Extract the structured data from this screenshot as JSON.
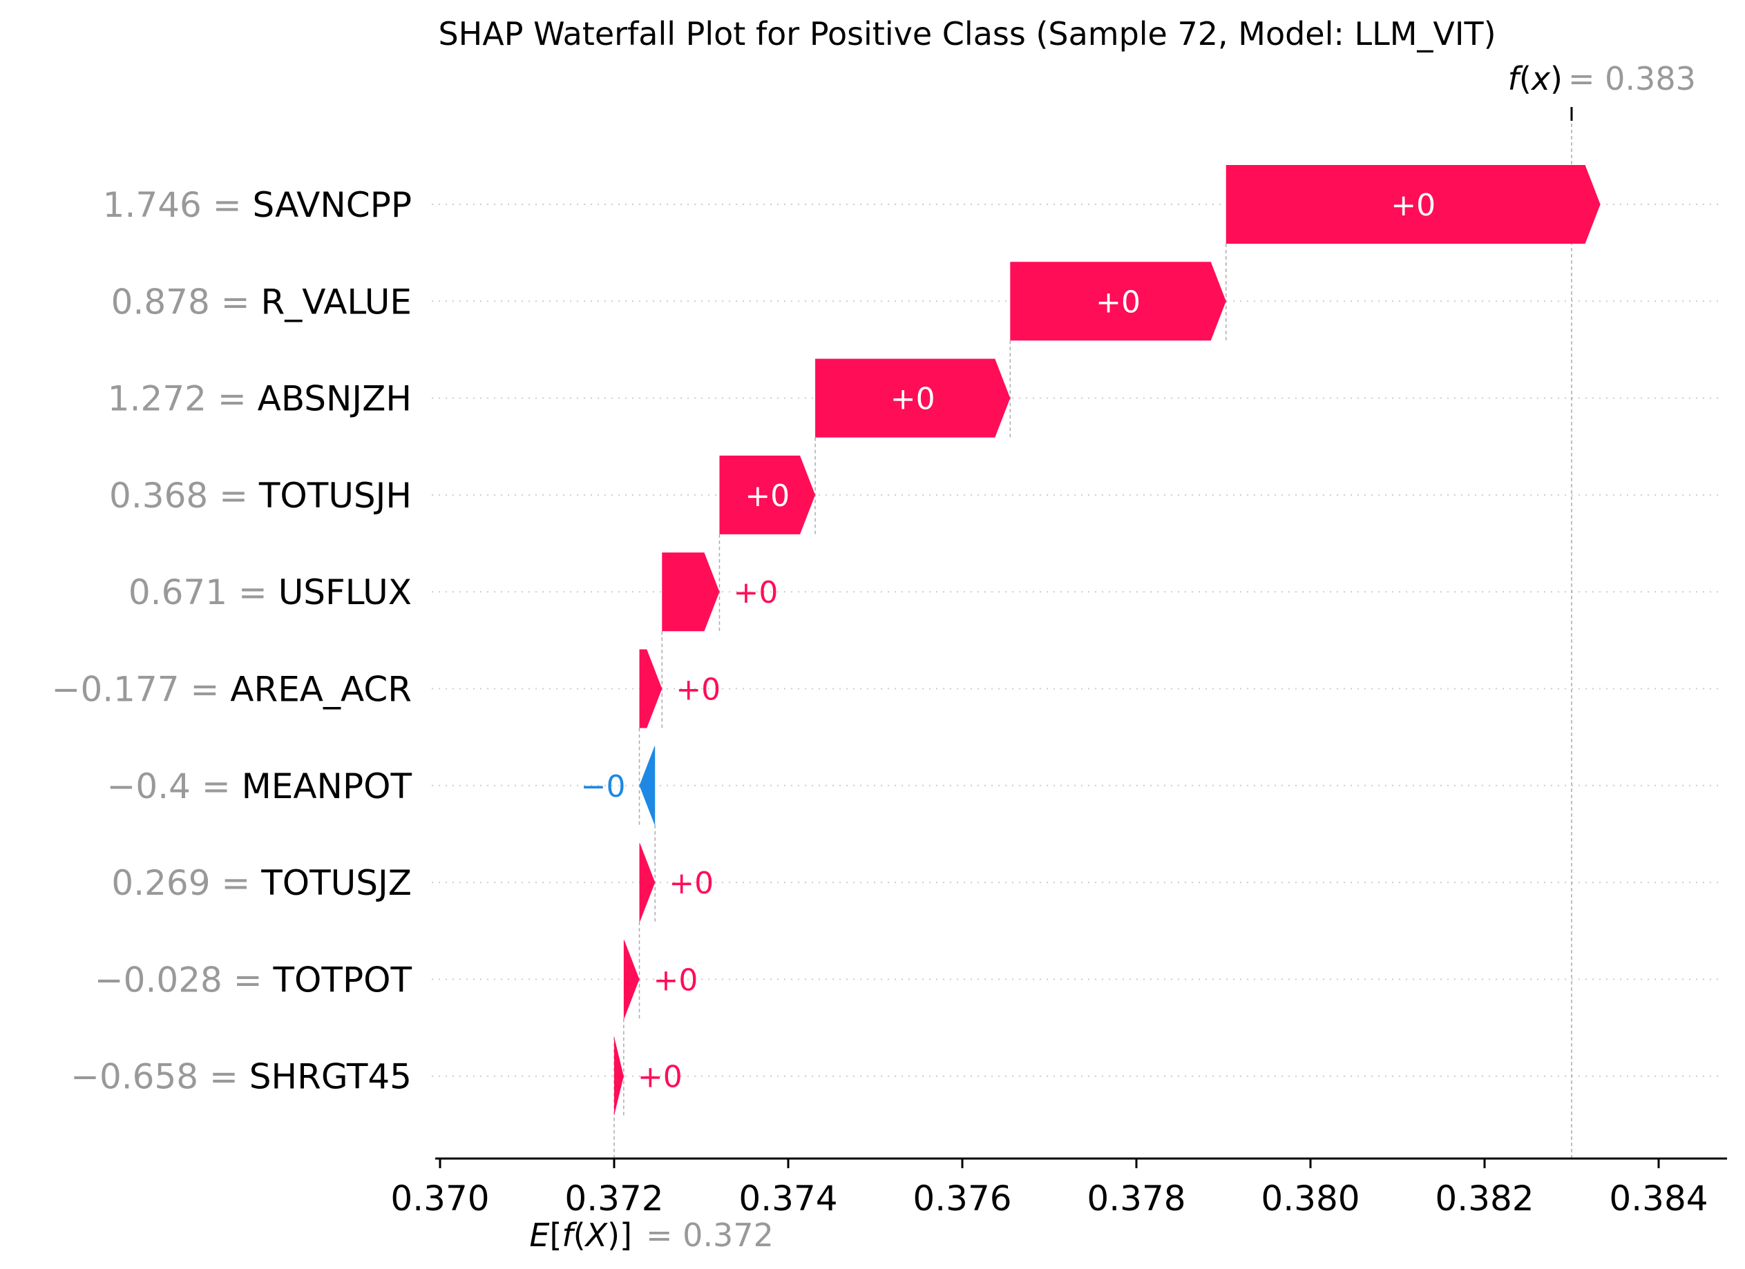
{
  "chart_data": {
    "type": "waterfall",
    "title": "SHAP Waterfall Plot for Positive Class (Sample 72, Model: LLM_VIT)",
    "base_value": 0.372,
    "base_value_text": "0.372",
    "base_label": "E[f(X)]",
    "output_value": 0.383,
    "output_value_text": "0.383",
    "output_label": "f(x)",
    "xlim": [
      0.3698,
      0.3847
    ],
    "xticks": [
      0.37,
      0.372,
      0.374,
      0.376,
      0.378,
      0.38,
      0.382,
      0.384
    ],
    "xtick_labels": [
      "0.370",
      "0.372",
      "0.374",
      "0.376",
      "0.378",
      "0.380",
      "0.382",
      "0.384"
    ],
    "colors": {
      "positive": "#ff0d57",
      "negative": "#1e88e5",
      "value_text": "#999999",
      "label_text": "#000000"
    },
    "features": [
      {
        "name": "SAVNCPP",
        "feature_value": "1.746",
        "shap": 0.0043,
        "label": "+0"
      },
      {
        "name": "R_VALUE",
        "feature_value": "0.878",
        "shap": 0.00248,
        "label": "+0"
      },
      {
        "name": "ABSNJZH",
        "feature_value": "1.272",
        "shap": 0.00224,
        "label": "+0"
      },
      {
        "name": "TOTUSJH",
        "feature_value": "0.368",
        "shap": 0.0011,
        "label": "+0"
      },
      {
        "name": "USFLUX",
        "feature_value": "0.671",
        "shap": 0.00066,
        "label": "+0"
      },
      {
        "name": "AREA_ACR",
        "feature_value": "−0.177",
        "shap": 0.00026,
        "label": "+0"
      },
      {
        "name": "MEANPOT",
        "feature_value": "−0.4",
        "shap": -0.00018,
        "label": "−0"
      },
      {
        "name": "TOTUSJZ",
        "feature_value": "0.269",
        "shap": 0.00018,
        "label": "+0"
      },
      {
        "name": "TOTPOT",
        "feature_value": "−0.028",
        "shap": 0.00018,
        "label": "+0"
      },
      {
        "name": "SHRGT45",
        "feature_value": "−0.658",
        "shap": 0.00011,
        "label": "+0"
      }
    ]
  }
}
